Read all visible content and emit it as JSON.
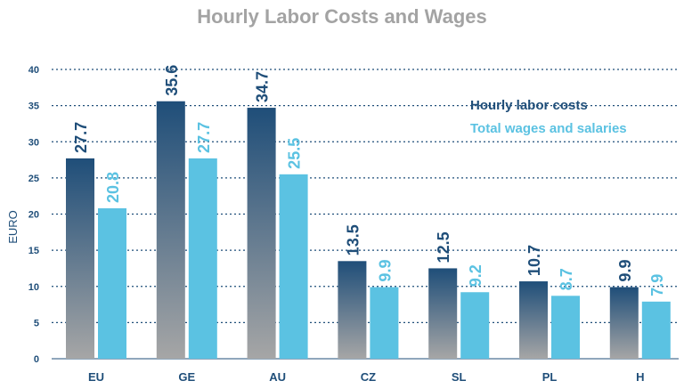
{
  "chart_data": {
    "type": "bar",
    "title": "Hourly Labor Costs and Wages",
    "xlabel": "",
    "ylabel": "EURO",
    "ylim": [
      0,
      40
    ],
    "yticks": [
      0,
      5,
      10,
      15,
      20,
      25,
      30,
      35,
      40
    ],
    "categories": [
      "EU",
      "GE",
      "AU",
      "CZ",
      "SL",
      "PL",
      "H"
    ],
    "series": [
      {
        "name": "Hourly labor costs",
        "values": [
          27.7,
          35.6,
          34.7,
          13.5,
          12.5,
          10.7,
          9.9
        ]
      },
      {
        "name": "Total wages and salaries",
        "values": [
          20.8,
          27.7,
          25.5,
          9.9,
          9.2,
          8.7,
          7.9
        ]
      }
    ],
    "grid": true,
    "legend_position": "top-right",
    "colors": {
      "labor_top": "#1f4e79",
      "labor_bottom": "#a6a6a6",
      "labor_label": "#1f4e79",
      "wages_bar": "#5bc2e2",
      "wages_label": "#5bc2e2",
      "axis_text": "#1f4e79",
      "title": "#a3a3a3",
      "gridline": "#1f4e79"
    }
  }
}
